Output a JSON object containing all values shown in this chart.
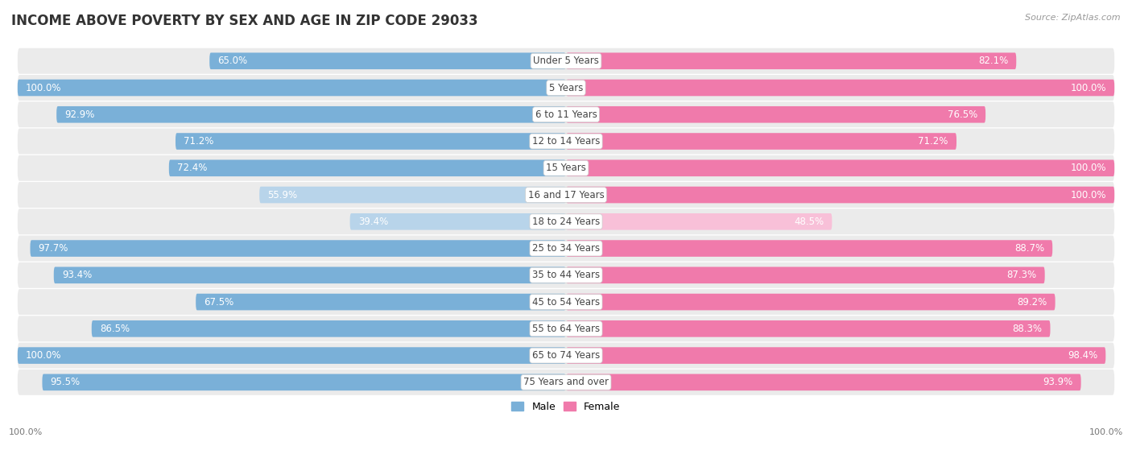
{
  "title": "INCOME ABOVE POVERTY BY SEX AND AGE IN ZIP CODE 29033",
  "source": "Source: ZipAtlas.com",
  "categories": [
    "Under 5 Years",
    "5 Years",
    "6 to 11 Years",
    "12 to 14 Years",
    "15 Years",
    "16 and 17 Years",
    "18 to 24 Years",
    "25 to 34 Years",
    "35 to 44 Years",
    "45 to 54 Years",
    "55 to 64 Years",
    "65 to 74 Years",
    "75 Years and over"
  ],
  "male_values": [
    65.0,
    100.0,
    92.9,
    71.2,
    72.4,
    55.9,
    39.4,
    97.7,
    93.4,
    67.5,
    86.5,
    100.0,
    95.5
  ],
  "female_values": [
    82.1,
    100.0,
    76.5,
    71.2,
    100.0,
    100.0,
    48.5,
    88.7,
    87.3,
    89.2,
    88.3,
    98.4,
    93.9
  ],
  "male_color_strong": "#7ab0d8",
  "male_color_weak": "#b8d4ea",
  "female_color_strong": "#f07aab",
  "female_color_weak": "#f8c0d8",
  "male_label": "Male",
  "female_label": "Female",
  "male_legend_color": "#7ab0d8",
  "female_legend_color": "#f07aab",
  "row_bg_odd": "#f0f0f0",
  "row_bg_even": "#e8e8e8",
  "title_fontsize": 12,
  "cat_fontsize": 8.5,
  "value_fontsize": 8.5,
  "max_value": 100.0,
  "background_color": "#ffffff",
  "threshold_for_inside_label": 20.0
}
